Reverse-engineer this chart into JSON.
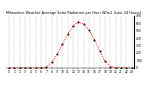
{
  "title": "Milwaukee Weather Average Solar Radiation per Hour W/m2 (Last 24 Hours)",
  "x_hours": [
    0,
    1,
    2,
    3,
    4,
    5,
    6,
    7,
    8,
    9,
    10,
    11,
    12,
    13,
    14,
    15,
    16,
    17,
    18,
    19,
    20,
    21,
    22,
    23
  ],
  "y_values": [
    0,
    0,
    0,
    0,
    0,
    0,
    1,
    10,
    75,
    180,
    315,
    455,
    565,
    615,
    585,
    505,
    375,
    225,
    90,
    18,
    2,
    0,
    0,
    0
  ],
  "line_color": "#ff0000",
  "dot_color": "#000000",
  "bg_color": "#ffffff",
  "grid_color": "#bbbbbb",
  "title_color": "#000000",
  "ylim": [
    0,
    700
  ],
  "yticks": [
    0,
    100,
    200,
    300,
    400,
    500,
    600,
    700
  ],
  "title_fontsize": 2.5,
  "tick_fontsize": 2.2,
  "figsize": [
    1.6,
    0.87
  ],
  "dpi": 100
}
